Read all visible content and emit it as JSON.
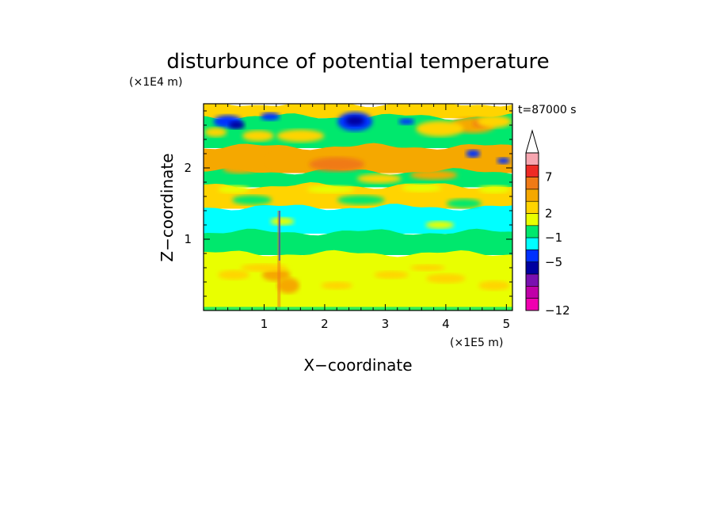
{
  "chart_data": {
    "type": "heatmap",
    "title": "disturbunce of potential temperature",
    "xlabel": "X−coordinate",
    "ylabel": "Z−coordinate",
    "x_unit": "(×1E5 m)",
    "y_unit": "(×1E4 m)",
    "time_label": "t=87000 s",
    "xlim": [
      0,
      5.1
    ],
    "ylim": [
      0,
      2.9
    ],
    "x_ticks": [
      "1",
      "2",
      "3",
      "4",
      "5"
    ],
    "y_ticks": [
      "1",
      "2"
    ],
    "grid": false,
    "colorbar": {
      "placement": "right",
      "labels": [
        "7",
        "2",
        "−1",
        "−5",
        "−12"
      ],
      "colors": [
        "#ffffff",
        "#f7a6b0",
        "#ee2a24",
        "#f07a16",
        "#f5a800",
        "#ffd400",
        "#e9ff00",
        "#00e86d",
        "#00ffff",
        "#0030ff",
        "#0000a0",
        "#7a10b0",
        "#c000a8",
        "#f000b0"
      ]
    },
    "layers": [
      {
        "z_top": 2.9,
        "z_bottom": 2.72,
        "value_band": "yellow/orange with green",
        "color": "#ffd400"
      },
      {
        "z_top": 2.72,
        "z_bottom": 2.3,
        "value_band": "green with blue cores",
        "color": "#00e86d"
      },
      {
        "z_top": 2.3,
        "z_bottom": 1.95,
        "value_band": "orange",
        "color": "#f5a800"
      },
      {
        "z_top": 1.95,
        "z_bottom": 1.75,
        "value_band": "green",
        "color": "#00e86d"
      },
      {
        "z_top": 1.75,
        "z_bottom": 1.45,
        "value_band": "yellow",
        "color": "#ffd400"
      },
      {
        "z_top": 1.45,
        "z_bottom": 1.1,
        "value_band": "cyan",
        "color": "#00ffff"
      },
      {
        "z_top": 1.1,
        "z_bottom": 0.8,
        "value_band": "green",
        "color": "#00e86d"
      },
      {
        "z_top": 0.8,
        "z_bottom": 0.0,
        "value_band": "yellow with orange patches",
        "color": "#e9ff00"
      }
    ]
  }
}
